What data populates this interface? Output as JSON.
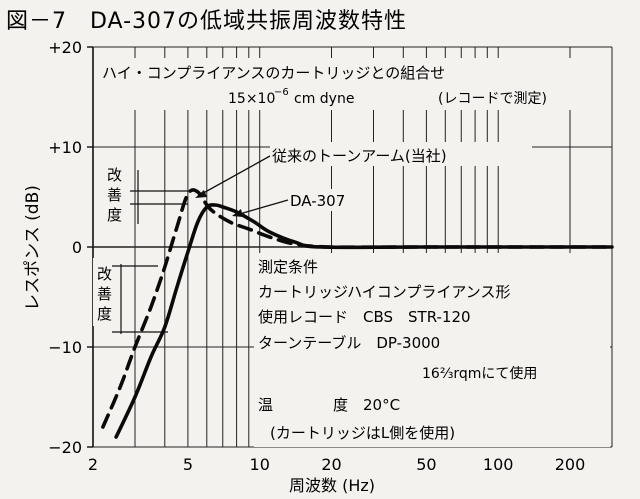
{
  "chart_data": {
    "type": "line",
    "title": "図－7　DA-307の低域共振周波数特性",
    "xlabel": "周波数 (Hz)",
    "ylabel": "レスポンス (dB)",
    "x_scale": "log",
    "xlim": [
      2,
      300
    ],
    "ylim": [
      -20,
      20
    ],
    "x_ticks": [
      2,
      5,
      10,
      20,
      50,
      100,
      200
    ],
    "x_tick_labels": [
      "2",
      "5",
      "10",
      "20",
      "50",
      "100",
      "200"
    ],
    "y_ticks": [
      20,
      10,
      0,
      -10,
      -20
    ],
    "y_tick_labels": [
      "+20",
      "+10",
      "0",
      "−10",
      "−20"
    ],
    "grid": true,
    "series": [
      {
        "name": "従来のトーンアーム(当社)",
        "style": "dashed",
        "x": [
          2.2,
          2.6,
          3.0,
          3.5,
          4.0,
          4.5,
          5.0,
          5.5,
          6.2,
          7.5,
          9.0,
          11,
          14,
          20,
          50,
          300
        ],
        "y": [
          -18,
          -14,
          -10,
          -6,
          -2,
          2,
          5.3,
          5.5,
          3.8,
          2.5,
          1.8,
          1.0,
          0.3,
          0,
          0,
          0
        ]
      },
      {
        "name": "DA-307",
        "style": "solid",
        "x": [
          2.5,
          3.0,
          3.5,
          4.0,
          4.5,
          5.0,
          5.5,
          6.0,
          6.5,
          7.0,
          8.0,
          9.5,
          11,
          14,
          18,
          50,
          300
        ],
        "y": [
          -19,
          -15,
          -11,
          -8,
          -4,
          -0.5,
          2.5,
          4.0,
          4.2,
          4.0,
          3.5,
          2.5,
          1.5,
          0.5,
          0,
          0,
          0
        ]
      }
    ],
    "annotations": {
      "header_line1": "ハイ・コンプライアンスのカートリッジとの組合せ",
      "header_line2_compliance": "15×10",
      "header_line2_exponent": "−6",
      "header_line2_unit": "cm dyne",
      "header_line2_note": "(レコードで測定)",
      "label_conventional": "従来のトーンアーム(当社)",
      "label_da307": "DA-307",
      "improvement_label": "改善度",
      "conditions": [
        "測定条件",
        "カートリッジハイコンプライアンス形",
        "使用レコード　CBS　STR-120",
        "ターンテーブル　DP-3000",
        "16⅔rqmにて使用",
        "温　　　　度　20°C",
        "(カートリッジはL側を使用)"
      ]
    }
  }
}
